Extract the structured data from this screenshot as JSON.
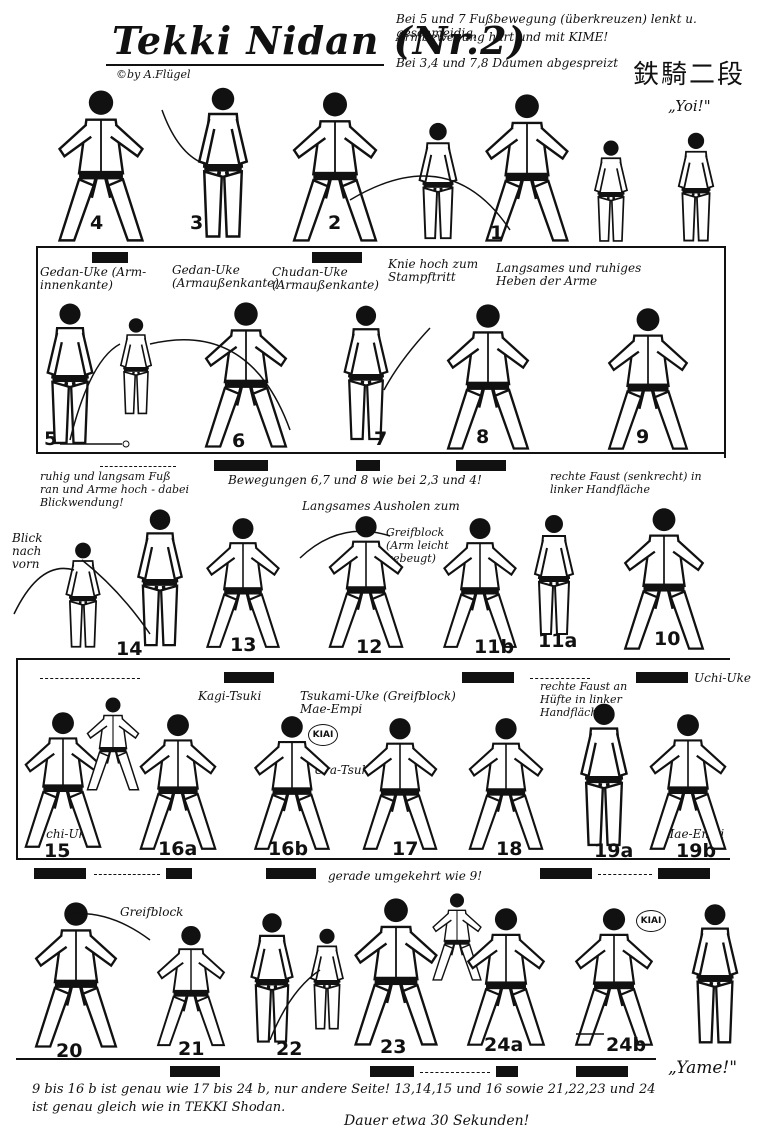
{
  "header": {
    "title": "Tekki Nidan (Nr.2)",
    "author": "©by A.Flügel",
    "note_line1": "Bei 5 und 7 Fußbewegung (überkreuzen) lenkt u. geschmeidig,",
    "note_line2": "Armbewegung hart und mit KIME!",
    "note_line3": "Bei 3,4 und 7,8 Daumen abgespreizt",
    "kanji": "鉄騎二段"
  },
  "row1": {
    "yoi": "„Yoi!\"",
    "steps": [
      "4",
      "3",
      "2",
      "1"
    ]
  },
  "row2": {
    "labels": {
      "gedan_inner": "Gedan-Uke (Arm-innenkante)",
      "gedan_outer": "Gedan-Uke (Armaußenkante)",
      "chudan_outer": "Chudan-Uke (Armaußenkante)",
      "knie": "Knie hoch zum Stampftritt",
      "langsames": "Langsames und ruhiges Heben der Arme"
    },
    "steps": [
      "5",
      "6",
      "7",
      "8",
      "9"
    ]
  },
  "row3": {
    "labels": {
      "ruhig": "ruhig und langsam Fuß ran und Arme hoch - dabei Blickwendung!",
      "bewegungen": "Bewegungen 6,7 und 8 wie bei 2,3 und 4!",
      "blick": "Blick nach vorn",
      "langsames_ausholen": "Langsames Ausholen zum",
      "greifblock": "Greifblock (Arm leicht gebeugt)",
      "faust": "rechte Faust (senkrecht) in linker Handfläche"
    },
    "steps": [
      "14",
      "13",
      "12",
      "11b",
      "11a",
      "10"
    ]
  },
  "row4": {
    "labels": {
      "kagi": "Kagi-Tsuki",
      "tsukami": "Tsukami-Uke (Greifblock) Mae-Empi",
      "rechte_faust": "rechte Faust an Hüfte in linker Handfläche",
      "uchi_uke_right": "Uchi-Uke",
      "uchi_uke_left": "Uchi-Uke",
      "ura_tsuki": "Ura-Tsuki",
      "mae_empi": "Mae-Empi",
      "kiai": "KIAI"
    },
    "steps": [
      "15",
      "16a",
      "16b",
      "17",
      "18",
      "19a",
      "19b"
    ]
  },
  "row5": {
    "labels": {
      "gerade": "gerade umgekehrt wie 9!",
      "greifblock": "Greifblock",
      "kiai": "KIAI"
    },
    "steps": [
      "20",
      "21",
      "22",
      "23",
      "24a",
      "24b"
    ],
    "yame": "„Yame!\""
  },
  "footer": {
    "line1": "9 bis 16 b ist genau wie 17 bis 24 b, nur andere Seite! 13,14,15 und 16 sowie 21,22,23 und 24",
    "line2": "ist genau gleich wie in TEKKI Shodan.",
    "line3": "Dauer etwa 30 Sekunden!"
  }
}
